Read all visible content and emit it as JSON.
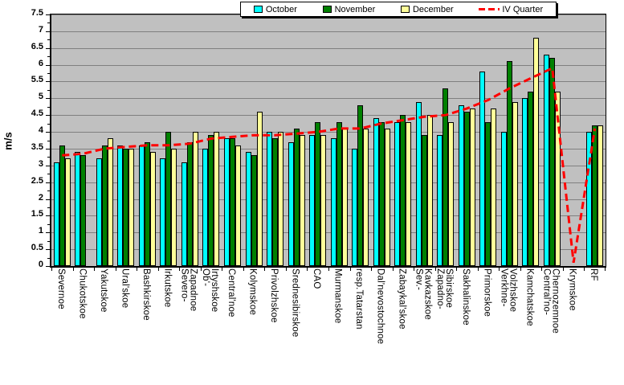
{
  "legend": {
    "items": [
      {
        "label": "October"
      },
      {
        "label": "November"
      },
      {
        "label": "December"
      },
      {
        "label": "IV Quarter"
      }
    ]
  },
  "chart_data": {
    "type": "bar",
    "title": "",
    "xlabel": "",
    "ylabel": "m/s",
    "ylim": [
      0,
      7.5
    ],
    "ytick_step": 0.5,
    "yticks": [
      "0",
      "0.5",
      "1",
      "1.5",
      "2",
      "2.5",
      "3",
      "3.5",
      "4",
      "4.5",
      "5",
      "5.5",
      "6",
      "6.5",
      "7",
      "7.5"
    ],
    "grid": true,
    "plot_bg": "#C0C0C0",
    "gridline_color": "#808080",
    "legend_position": "top-center",
    "categories": [
      "Severnoe",
      "Chukotskoe",
      "Yakutskoe",
      "Ural'skoe",
      "Bashkirskoe",
      "Irkutskoe",
      "Severo-\nZapadnoe",
      "Ob'-\nIrtyshskoe",
      "Central'noe",
      "Kolymskoe",
      "Privolzhskoe",
      "Srednesibirskoe",
      "CAO",
      "Murmanskoe",
      "resp.Tatarstan",
      "Dal'nevostochnoe",
      "Zabaykal'skoe",
      "Sev.-\nKavkazskoe",
      "Zapadno-\nSibirskoe",
      "Sakhalinskoe",
      "Primorskoe",
      "Verkhne-\nVolzhskoe",
      "Kamchatskoe",
      "Central'no-\nChernozemnoe",
      "Krymskoe",
      "RF"
    ],
    "series": [
      {
        "name": "October",
        "color": "#00FFFF",
        "values": [
          3.1,
          3.4,
          3.2,
          3.6,
          3.6,
          3.2,
          3.1,
          3.5,
          3.8,
          3.4,
          4.0,
          3.7,
          3.9,
          3.8,
          3.5,
          4.4,
          4.3,
          4.9,
          3.9,
          4.8,
          5.8,
          4.0,
          5.0,
          6.3,
          null,
          4.0
        ]
      },
      {
        "name": "November",
        "color": "#008000",
        "values": [
          3.6,
          3.3,
          3.6,
          3.5,
          3.7,
          4.0,
          3.7,
          3.9,
          3.8,
          3.3,
          3.8,
          4.1,
          4.3,
          4.3,
          4.8,
          4.3,
          4.5,
          3.9,
          5.3,
          4.6,
          4.3,
          6.1,
          5.2,
          6.2,
          null,
          4.2
        ]
      },
      {
        "name": "December",
        "color": "#FFFF99",
        "values": [
          3.2,
          null,
          3.8,
          3.5,
          3.4,
          3.5,
          4.0,
          4.0,
          3.6,
          4.6,
          4.0,
          3.9,
          3.9,
          4.1,
          4.1,
          4.1,
          4.3,
          4.5,
          4.3,
          4.7,
          4.7,
          4.9,
          6.8,
          5.2,
          null,
          4.2
        ]
      }
    ],
    "line_series": {
      "name": "IV Quarter",
      "color": "#FF0000",
      "style": "dashed",
      "values": [
        3.3,
        3.35,
        3.5,
        3.55,
        3.6,
        3.6,
        3.65,
        3.8,
        3.85,
        3.9,
        3.9,
        3.95,
        4.0,
        4.1,
        4.1,
        4.25,
        4.35,
        4.45,
        4.5,
        4.7,
        4.95,
        5.3,
        5.6,
        5.9,
        0.1,
        4.1
      ]
    }
  }
}
